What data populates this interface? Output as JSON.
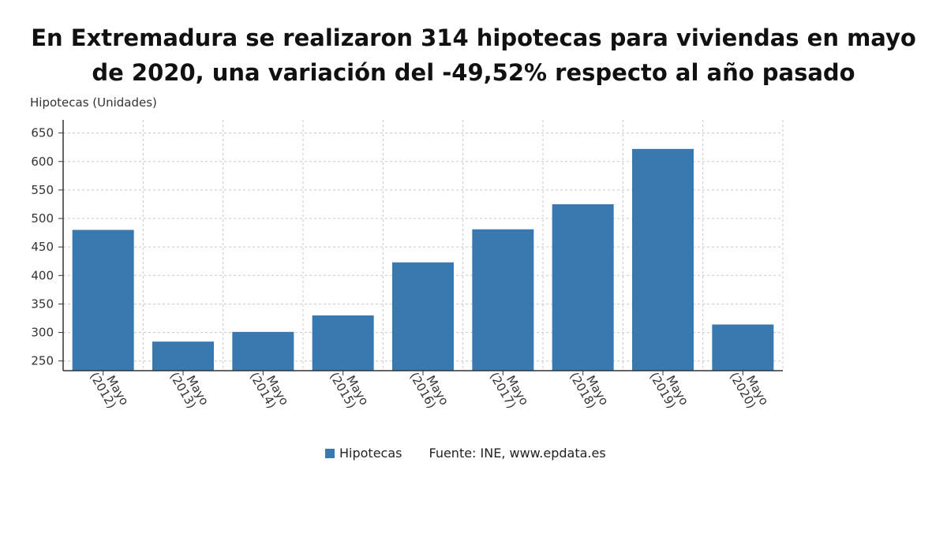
{
  "chart_data": {
    "type": "bar",
    "title_lines": [
      "En Extremadura se realizaron 314 hipotecas para viviendas en mayo",
      "de 2020, una variación del -49,52% respecto al año pasado"
    ],
    "ylabel": "Hipotecas (Unidades)",
    "categories": [
      [
        "Mayo",
        "(2012)"
      ],
      [
        "Mayo",
        "(2013)"
      ],
      [
        "Mayo",
        "(2014)"
      ],
      [
        "Mayo",
        "(2015)"
      ],
      [
        "Mayo",
        "(2016)"
      ],
      [
        "Mayo",
        "(2017)"
      ],
      [
        "Mayo",
        "(2018)"
      ],
      [
        "Mayo",
        "(2019)"
      ],
      [
        "Mayo",
        "(2020)"
      ]
    ],
    "series": [
      {
        "name": "Hipotecas",
        "values": [
          480,
          284,
          301,
          330,
          423,
          481,
          525,
          622,
          314
        ]
      }
    ],
    "yticks": [
      250,
      300,
      350,
      400,
      450,
      500,
      550,
      600,
      650
    ],
    "ylim": [
      233,
      673
    ],
    "grid": true,
    "legend_position": "bottom",
    "source": "Fuente: INE, www.epdata.es",
    "colors": {
      "bar": "#3a79b0",
      "grid": "#c8c8c8",
      "axis": "#333333"
    }
  }
}
